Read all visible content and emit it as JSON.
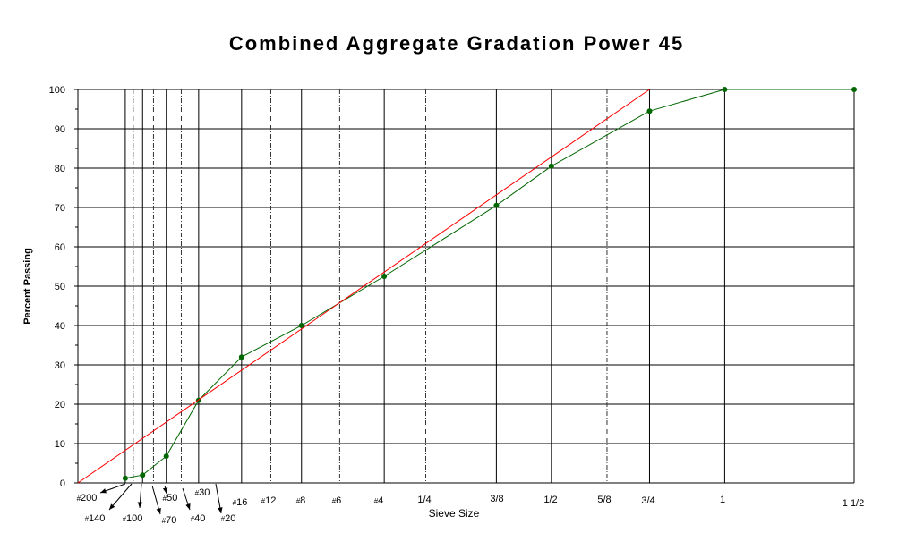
{
  "chart_data": {
    "type": "line",
    "title": "Combined Aggregate Gradation Power 45",
    "xlabel": "Sieve Size",
    "ylabel": "Percent Passing",
    "ylim": [
      0,
      100
    ],
    "yticks": [
      0,
      10,
      20,
      30,
      40,
      50,
      60,
      70,
      80,
      90,
      100
    ],
    "grid": true,
    "x_scale": "power 0.45 (sieve opening in mm)",
    "sieves": [
      {
        "label": "#200",
        "size_mm": 0.075
      },
      {
        "label": "#140",
        "size_mm": 0.106
      },
      {
        "label": "#100",
        "size_mm": 0.15
      },
      {
        "label": "#70",
        "size_mm": 0.212
      },
      {
        "label": "#50",
        "size_mm": 0.3
      },
      {
        "label": "#40",
        "size_mm": 0.425
      },
      {
        "label": "#30",
        "size_mm": 0.6
      },
      {
        "label": "#20",
        "size_mm": 0.85
      },
      {
        "label": "#16",
        "size_mm": 1.18
      },
      {
        "label": "#12",
        "size_mm": 1.7
      },
      {
        "label": "#8",
        "size_mm": 2.36
      },
      {
        "label": "#6",
        "size_mm": 3.35
      },
      {
        "label": "#4",
        "size_mm": 4.75
      },
      {
        "label": "1/4",
        "size_mm": 6.3
      },
      {
        "label": "3/8",
        "size_mm": 9.5
      },
      {
        "label": "1/2",
        "size_mm": 12.5
      },
      {
        "label": "5/8",
        "size_mm": 16.0
      },
      {
        "label": "3/4",
        "size_mm": 19.0
      },
      {
        "label": "1",
        "size_mm": 25.0
      },
      {
        "label": "1 1/2",
        "size_mm": 37.5
      }
    ],
    "series": [
      {
        "color": "#006600",
        "x_mm": [
          0.075,
          0.15,
          0.3,
          0.6,
          1.18,
          2.36,
          4.75,
          9.5,
          12.5,
          19.0,
          25.0,
          37.5
        ],
        "values": [
          1.2,
          2.0,
          6.8,
          21.0,
          32.0,
          40.0,
          52.5,
          70.5,
          80.5,
          94.5,
          100,
          100
        ]
      },
      {
        "color": "#ff0000",
        "x_mm": [
          0,
          19.0
        ],
        "values": [
          0,
          100
        ]
      }
    ]
  }
}
